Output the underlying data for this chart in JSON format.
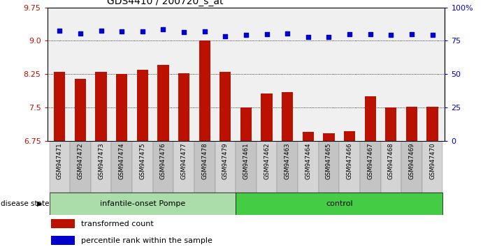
{
  "title": "GDS4410 / 200720_s_at",
  "samples": [
    "GSM947471",
    "GSM947472",
    "GSM947473",
    "GSM947474",
    "GSM947475",
    "GSM947476",
    "GSM947477",
    "GSM947478",
    "GSM947479",
    "GSM947461",
    "GSM947462",
    "GSM947463",
    "GSM947464",
    "GSM947465",
    "GSM947466",
    "GSM947467",
    "GSM947468",
    "GSM947469",
    "GSM947470"
  ],
  "bar_values": [
    8.3,
    8.15,
    8.3,
    8.26,
    8.35,
    8.45,
    8.27,
    9.0,
    8.3,
    7.5,
    7.82,
    7.84,
    6.95,
    6.92,
    6.96,
    7.75,
    7.5,
    7.52,
    7.52
  ],
  "dot_values": [
    9.22,
    9.17,
    9.22,
    9.21,
    9.21,
    9.25,
    9.2,
    9.21,
    9.1,
    9.13,
    9.15,
    9.17,
    9.09,
    9.08,
    9.14,
    9.14,
    9.13,
    9.14,
    9.13
  ],
  "groups": [
    {
      "label": "infantile-onset Pompe",
      "start": 0,
      "end": 9,
      "color": "#aaddaa"
    },
    {
      "label": "control",
      "start": 9,
      "end": 19,
      "color": "#44cc44"
    }
  ],
  "ylim_left": [
    6.75,
    9.75
  ],
  "ylim_right": [
    0,
    100
  ],
  "yticks_left": [
    6.75,
    7.5,
    8.25,
    9.0,
    9.75
  ],
  "yticks_right": [
    0,
    25,
    50,
    75,
    100
  ],
  "bar_color": "#BB1100",
  "dot_color": "#0000CC",
  "grid_lines": [
    7.5,
    8.25,
    9.0
  ],
  "legend_items": [
    {
      "label": "transformed count",
      "color": "#BB1100"
    },
    {
      "label": "percentile rank within the sample",
      "color": "#0000CC"
    }
  ]
}
